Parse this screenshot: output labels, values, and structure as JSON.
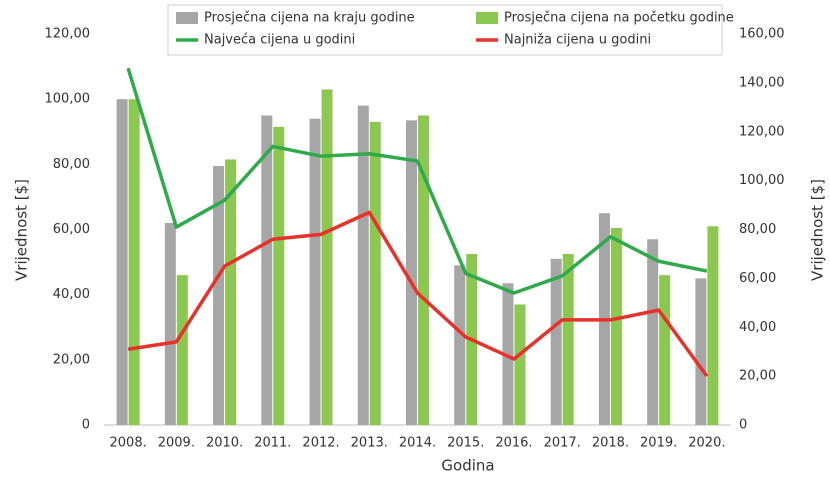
{
  "chart_data": {
    "type": "bar",
    "x_label": "Godina",
    "y_label": "Vrijednost [$]",
    "y2_label": "Vrijednost [$]",
    "categories": [
      "2008.",
      "2009.",
      "2010.",
      "2011.",
      "2012.",
      "2013.",
      "2014.",
      "2015.",
      "2016.",
      "2017.",
      "2018.",
      "2019.",
      "2020."
    ],
    "series": [
      {
        "name": "Prosječna cijena na kraju godine",
        "kind": "bar",
        "color": "#a6a6a6",
        "values": [
          100,
          62,
          79.5,
          95,
          94,
          98,
          93.5,
          49,
          43.5,
          51,
          65,
          57,
          45
        ]
      },
      {
        "name": "Prosječna cijena na početku godine",
        "kind": "bar",
        "color": "#8cc751",
        "values": [
          100,
          46,
          81.5,
          91.5,
          103,
          93,
          95,
          52.5,
          37,
          52.5,
          60.5,
          46,
          61
        ]
      },
      {
        "name": "Najveća cijena u godini",
        "kind": "line",
        "axis": "y2",
        "color": "#2eaa4a",
        "values": [
          146,
          81,
          92,
          114,
          110,
          111,
          108,
          62,
          54,
          61,
          77,
          67,
          63
        ]
      },
      {
        "name": "Najniža cijena u godini",
        "kind": "line",
        "axis": "y2",
        "color": "#e8312a",
        "values": [
          31,
          34,
          65,
          76,
          78,
          87,
          54,
          36,
          27,
          43,
          43,
          47,
          20
        ]
      }
    ],
    "ylim": [
      0,
      120
    ],
    "yticks": [
      0,
      {
        "value": 20,
        "label": "20,00"
      },
      {
        "value": 40,
        "label": "40,00"
      },
      {
        "value": 60,
        "label": "60,00"
      },
      {
        "value": 80,
        "label": "80,00"
      },
      {
        "value": 100,
        "label": "100,00"
      },
      {
        "value": 120,
        "label": "120,00"
      }
    ],
    "y2lim": [
      0,
      160
    ],
    "y2ticks": [
      0,
      {
        "value": 20,
        "label": "20,00"
      },
      {
        "value": 40,
        "label": "40,00"
      },
      {
        "value": 60,
        "label": "60,00"
      },
      {
        "value": 80,
        "label": "80,00"
      },
      {
        "value": 100,
        "label": "100,00"
      },
      {
        "value": 120,
        "label": "120,00"
      },
      {
        "value": 140,
        "label": "140,00"
      },
      {
        "value": 160,
        "label": "160,00"
      }
    ],
    "grid": false,
    "legend": "top"
  }
}
